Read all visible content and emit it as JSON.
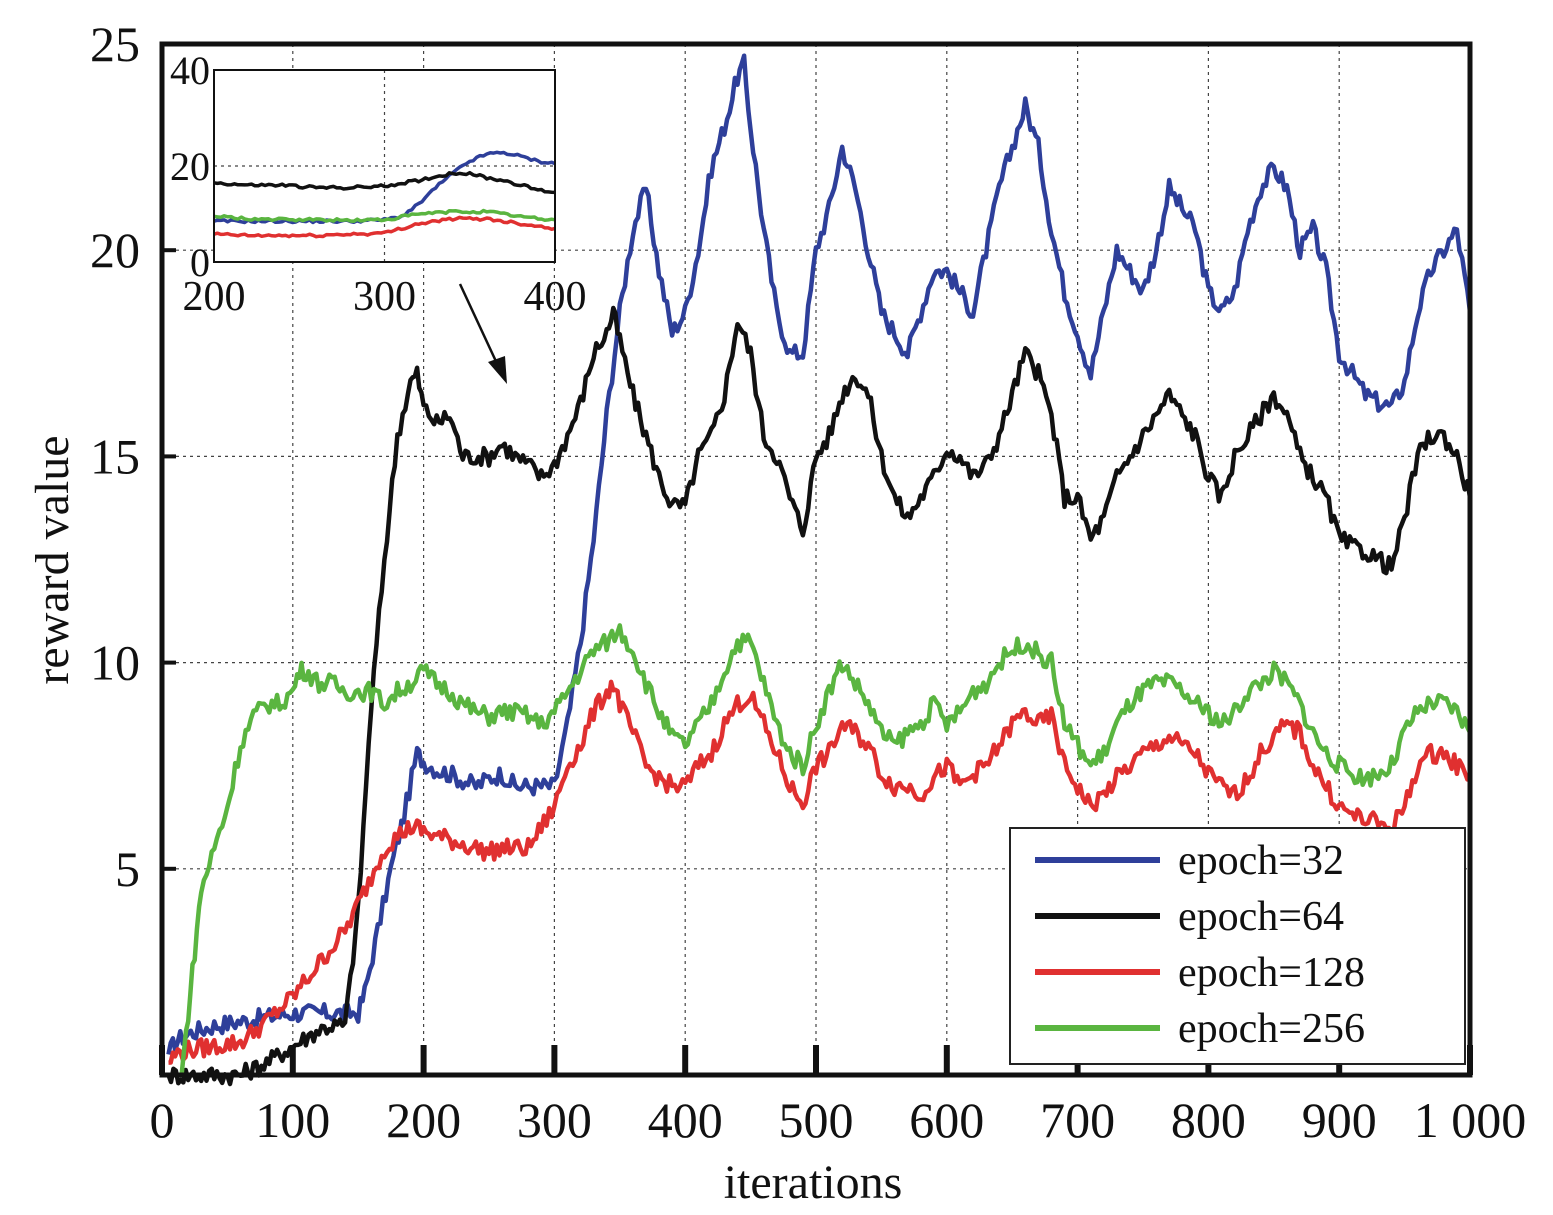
{
  "chart_data": {
    "type": "line",
    "xlabel": "iterations",
    "ylabel": "reward value",
    "xlim": [
      0,
      1000
    ],
    "ylim": [
      0,
      25
    ],
    "x_ticks": [
      0,
      100,
      200,
      300,
      400,
      500,
      600,
      700,
      800,
      900,
      1000
    ],
    "x_tick_labels": [
      "0",
      "100",
      "200",
      "300",
      "400",
      "500",
      "600",
      "700",
      "800",
      "900",
      "1 000"
    ],
    "y_ticks": [
      5,
      10,
      15,
      20,
      25
    ],
    "y_tick_labels": [
      "5",
      "10",
      "15",
      "20",
      "25"
    ],
    "grid": true,
    "legend_position": "bottom-right",
    "series": [
      {
        "name": "epoch=32",
        "color": "#2e3f9a",
        "x": [
          5,
          10,
          20,
          40,
          60,
          80,
          100,
          120,
          140,
          150,
          155,
          165,
          175,
          185,
          195,
          200,
          210,
          220,
          240,
          250,
          260,
          270,
          280,
          290,
          300,
          310,
          320,
          330,
          340,
          350,
          360,
          370,
          380,
          390,
          400,
          410,
          420,
          430,
          440,
          445,
          450,
          460,
          470,
          480,
          490,
          500,
          510,
          520,
          530,
          540,
          550,
          560,
          570,
          580,
          590,
          600,
          610,
          620,
          630,
          640,
          650,
          660,
          670,
          680,
          690,
          700,
          710,
          720,
          730,
          740,
          750,
          760,
          770,
          780,
          790,
          800,
          810,
          820,
          830,
          840,
          850,
          860,
          870,
          880,
          890,
          900,
          910,
          920,
          930,
          940,
          950,
          960,
          970,
          980,
          990,
          1000
        ],
        "values": [
          0.5,
          0.8,
          1.0,
          1.2,
          1.3,
          1.4,
          1.5,
          1.5,
          1.5,
          1.5,
          2.0,
          3.5,
          5.0,
          6.3,
          7.8,
          7.6,
          7.4,
          7.3,
          7.0,
          7.2,
          7.3,
          7.0,
          7.0,
          7.0,
          7.0,
          8.5,
          10.5,
          13.0,
          16.0,
          18.5,
          20.5,
          21.5,
          19.5,
          18.0,
          18.5,
          20.0,
          22.0,
          23.0,
          24.2,
          24.5,
          23.0,
          20.5,
          18.5,
          17.5,
          17.5,
          20.0,
          21.0,
          22.5,
          21.5,
          20.0,
          18.5,
          18.0,
          17.5,
          18.5,
          19.5,
          19.5,
          19.0,
          18.5,
          20.0,
          21.5,
          22.5,
          23.5,
          22.5,
          20.5,
          19.0,
          18.0,
          17.0,
          18.5,
          20.0,
          19.5,
          19.0,
          20.0,
          21.5,
          21.0,
          20.5,
          19.0,
          18.5,
          19.0,
          20.5,
          21.5,
          22.0,
          21.5,
          20.0,
          20.5,
          19.5,
          17.5,
          17.0,
          16.5,
          16.3,
          16.2,
          16.8,
          18.5,
          19.5,
          20.0,
          20.5,
          18.5
        ]
      },
      {
        "name": "epoch=64",
        "color": "#111111",
        "x": [
          5,
          20,
          40,
          60,
          80,
          100,
          110,
          120,
          130,
          140,
          150,
          160,
          170,
          180,
          190,
          195,
          200,
          210,
          220,
          230,
          240,
          250,
          260,
          270,
          280,
          290,
          300,
          310,
          320,
          330,
          340,
          345,
          350,
          360,
          370,
          380,
          390,
          400,
          410,
          420,
          430,
          440,
          450,
          460,
          470,
          480,
          490,
          500,
          510,
          520,
          530,
          540,
          550,
          560,
          570,
          580,
          590,
          600,
          610,
          620,
          630,
          640,
          650,
          660,
          670,
          680,
          690,
          700,
          710,
          720,
          730,
          740,
          750,
          760,
          770,
          780,
          790,
          800,
          810,
          820,
          830,
          840,
          850,
          860,
          870,
          880,
          890,
          900,
          910,
          920,
          930,
          940,
          950,
          960,
          970,
          980,
          990,
          1000
        ],
        "values": [
          0,
          0,
          0,
          0,
          0.3,
          0.7,
          0.9,
          1.1,
          1.2,
          1.2,
          4.0,
          9.0,
          12.5,
          15.5,
          16.8,
          17.0,
          16.2,
          15.8,
          16.0,
          15.0,
          15.0,
          15.0,
          15.3,
          15.0,
          14.8,
          14.5,
          14.8,
          15.5,
          16.3,
          17.5,
          18.0,
          18.5,
          17.8,
          16.5,
          15.5,
          14.5,
          13.8,
          13.8,
          15.0,
          15.5,
          16.5,
          18.3,
          17.5,
          15.5,
          15.0,
          14.0,
          13.2,
          15.0,
          15.5,
          16.5,
          17.0,
          16.5,
          15.0,
          14.0,
          13.5,
          14.0,
          14.5,
          15.2,
          15.0,
          14.5,
          14.8,
          15.5,
          16.5,
          17.5,
          17.0,
          16.0,
          14.0,
          14.0,
          13.0,
          13.5,
          14.5,
          15.0,
          15.5,
          16.0,
          16.5,
          16.0,
          15.5,
          14.5,
          14.0,
          15.0,
          15.5,
          16.0,
          16.5,
          16.0,
          15.0,
          14.5,
          14.0,
          13.0,
          12.8,
          12.7,
          12.5,
          12.3,
          13.5,
          15.0,
          15.5,
          15.5,
          15.0,
          14.0
        ]
      },
      {
        "name": "epoch=128",
        "color": "#e03030",
        "x": [
          5,
          10,
          20,
          40,
          60,
          80,
          100,
          120,
          140,
          160,
          170,
          180,
          190,
          195,
          200,
          210,
          220,
          240,
          250,
          260,
          270,
          280,
          290,
          300,
          310,
          320,
          330,
          340,
          345,
          350,
          360,
          370,
          380,
          390,
          400,
          410,
          420,
          430,
          440,
          450,
          460,
          470,
          480,
          490,
          500,
          510,
          520,
          530,
          540,
          550,
          560,
          570,
          580,
          590,
          600,
          610,
          620,
          630,
          640,
          650,
          660,
          670,
          680,
          690,
          700,
          710,
          720,
          730,
          740,
          750,
          760,
          770,
          780,
          790,
          800,
          810,
          820,
          830,
          840,
          850,
          860,
          870,
          880,
          890,
          900,
          910,
          920,
          930,
          940,
          950,
          960,
          970,
          980,
          990,
          1000
        ],
        "values": [
          0.3,
          0.5,
          0.6,
          0.7,
          0.8,
          1.3,
          1.9,
          2.7,
          3.5,
          4.8,
          5.5,
          5.8,
          6.0,
          6.0,
          5.9,
          5.8,
          5.7,
          5.5,
          5.4,
          5.5,
          5.5,
          5.5,
          6.0,
          6.5,
          7.5,
          8.0,
          8.8,
          9.3,
          9.5,
          9.0,
          8.3,
          7.5,
          7.2,
          7.0,
          7.0,
          7.5,
          7.8,
          8.5,
          9.0,
          9.2,
          8.5,
          7.8,
          7.0,
          6.6,
          7.5,
          7.8,
          8.5,
          8.3,
          8.0,
          7.3,
          7.0,
          7.0,
          6.8,
          7.2,
          7.5,
          7.0,
          7.3,
          7.5,
          8.0,
          8.5,
          8.8,
          8.5,
          8.7,
          7.5,
          7.0,
          6.5,
          6.8,
          7.2,
          7.5,
          7.8,
          8.0,
          8.2,
          8.0,
          7.8,
          7.3,
          7.0,
          6.8,
          7.2,
          7.8,
          8.2,
          8.5,
          8.3,
          7.5,
          7.0,
          6.5,
          6.3,
          6.2,
          6.1,
          6.0,
          6.5,
          7.5,
          7.8,
          7.8,
          7.5,
          7.3
        ]
      },
      {
        "name": "epoch=256",
        "color": "#5ab540",
        "x": [
          15,
          20,
          25,
          30,
          40,
          50,
          60,
          70,
          80,
          90,
          100,
          105,
          110,
          120,
          130,
          140,
          150,
          160,
          170,
          180,
          190,
          200,
          210,
          220,
          230,
          240,
          250,
          260,
          270,
          280,
          290,
          300,
          310,
          320,
          330,
          340,
          350,
          360,
          370,
          380,
          390,
          400,
          410,
          420,
          430,
          440,
          450,
          460,
          470,
          480,
          490,
          500,
          510,
          520,
          530,
          540,
          550,
          560,
          570,
          580,
          590,
          600,
          610,
          620,
          630,
          640,
          650,
          660,
          670,
          680,
          690,
          700,
          710,
          720,
          730,
          740,
          750,
          760,
          770,
          780,
          790,
          800,
          810,
          820,
          830,
          840,
          850,
          860,
          870,
          880,
          890,
          900,
          910,
          920,
          930,
          940,
          950,
          960,
          970,
          980,
          990,
          1000
        ],
        "values": [
          0,
          1.5,
          3.0,
          4.5,
          5.5,
          6.5,
          8.0,
          8.7,
          9.0,
          9.0,
          9.3,
          9.8,
          9.8,
          9.5,
          9.5,
          9.3,
          9.3,
          9.3,
          9.0,
          9.3,
          9.5,
          9.8,
          9.5,
          9.3,
          9.0,
          8.8,
          8.7,
          8.8,
          8.8,
          8.7,
          8.5,
          8.8,
          9.3,
          9.8,
          10.3,
          10.5,
          10.8,
          10.3,
          9.5,
          8.8,
          8.2,
          8.0,
          8.5,
          9.0,
          9.8,
          10.5,
          10.5,
          9.5,
          8.5,
          7.8,
          7.5,
          8.5,
          9.3,
          10.0,
          9.5,
          9.0,
          8.3,
          8.0,
          8.3,
          8.5,
          9.0,
          8.5,
          8.8,
          9.3,
          9.5,
          10.0,
          10.3,
          10.5,
          10.2,
          10.0,
          8.5,
          8.0,
          7.5,
          7.8,
          8.5,
          9.0,
          9.3,
          9.5,
          9.5,
          9.3,
          9.0,
          8.8,
          8.5,
          8.8,
          9.3,
          9.5,
          9.8,
          9.5,
          9.0,
          8.3,
          7.8,
          7.5,
          7.3,
          7.2,
          7.3,
          7.5,
          8.3,
          8.8,
          9.0,
          9.0,
          8.8,
          8.3
        ]
      }
    ],
    "inset": {
      "xlim": [
        200,
        400
      ],
      "ylim": [
        0,
        40
      ],
      "x_ticks": [
        200,
        300,
        400
      ],
      "x_tick_labels": [
        "200",
        "300",
        "400"
      ],
      "y_ticks": [
        0,
        20,
        40
      ],
      "y_tick_labels": [
        "0",
        "20",
        "40"
      ],
      "grid": true,
      "series": [
        {
          "name": "epoch=32",
          "color": "#2e3f9a",
          "x": [
            200,
            220,
            240,
            260,
            280,
            300,
            310,
            320,
            330,
            340,
            350,
            360,
            370,
            380,
            390,
            400
          ],
          "values": [
            8.5,
            8.5,
            8.5,
            8.5,
            8.5,
            8.8,
            9.5,
            12.0,
            15.5,
            18.5,
            21.0,
            22.5,
            22.8,
            22.0,
            21.0,
            20.5
          ]
        },
        {
          "name": "epoch=64",
          "color": "#111111",
          "x": [
            200,
            220,
            240,
            260,
            280,
            300,
            320,
            340,
            350,
            360,
            370,
            380,
            390,
            400
          ],
          "values": [
            16.5,
            16.0,
            16.0,
            15.5,
            15.5,
            15.8,
            17.0,
            18.5,
            18.5,
            17.5,
            17.0,
            16.0,
            15.0,
            14.5
          ]
        },
        {
          "name": "epoch=128",
          "color": "#e03030",
          "x": [
            200,
            220,
            240,
            260,
            280,
            300,
            320,
            340,
            360,
            370,
            380,
            390,
            400
          ],
          "values": [
            5.8,
            5.5,
            5.5,
            5.5,
            5.8,
            6.0,
            8.0,
            9.0,
            9.0,
            8.5,
            8.0,
            7.5,
            7.0
          ]
        },
        {
          "name": "epoch=256",
          "color": "#5ab540",
          "x": [
            200,
            220,
            240,
            260,
            280,
            300,
            320,
            340,
            360,
            370,
            380,
            390,
            400
          ],
          "values": [
            9.5,
            9.0,
            8.8,
            8.8,
            8.7,
            8.8,
            10.0,
            10.5,
            10.5,
            10.0,
            9.5,
            9.0,
            8.8
          ]
        }
      ]
    }
  }
}
